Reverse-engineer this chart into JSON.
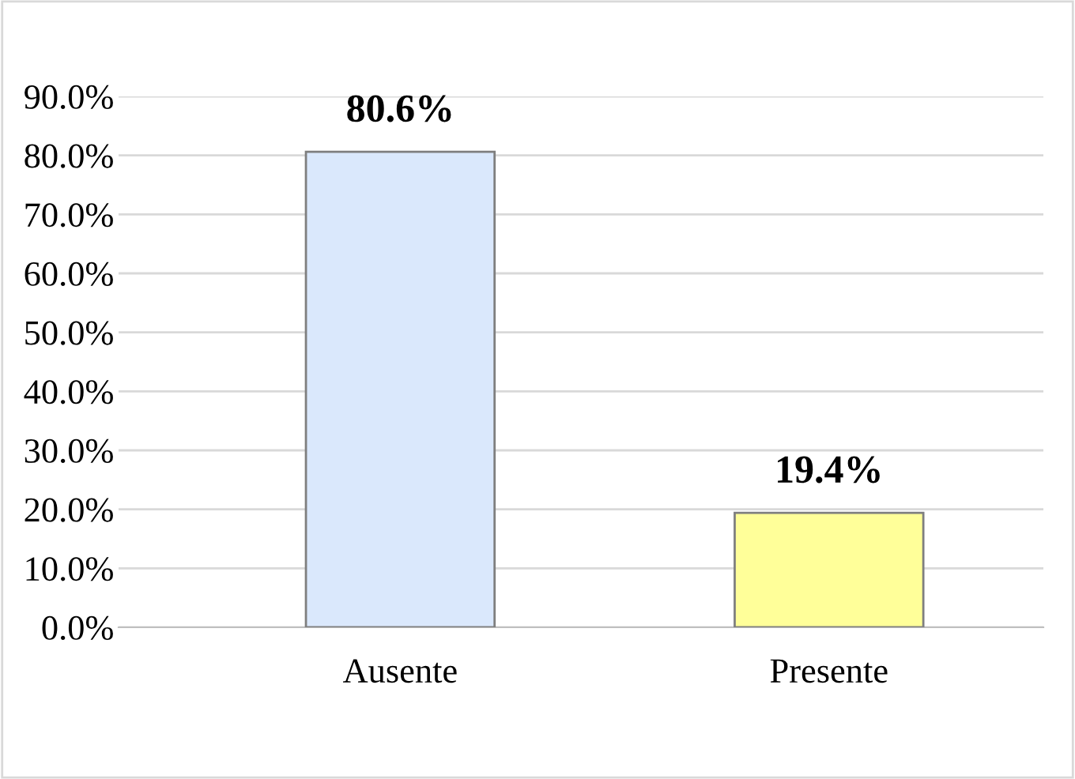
{
  "chart_data": {
    "type": "bar",
    "categories": [
      "Ausente",
      "Presente"
    ],
    "values": [
      80.6,
      19.4
    ],
    "colors": [
      "#dae8fc",
      "#ffff99"
    ],
    "value_labels": [
      "80.6%",
      "19.4%"
    ],
    "ylim": [
      0,
      90
    ],
    "yticks": [
      {
        "value": 0,
        "label": "0.0%"
      },
      {
        "value": 10,
        "label": "10.0%"
      },
      {
        "value": 20,
        "label": "20.0%"
      },
      {
        "value": 30,
        "label": "30.0%"
      },
      {
        "value": 40,
        "label": "40.0%"
      },
      {
        "value": 50,
        "label": "50.0%"
      },
      {
        "value": 60,
        "label": "60.0%"
      },
      {
        "value": 70,
        "label": "70.0%"
      },
      {
        "value": 80,
        "label": "80.0%"
      },
      {
        "value": 90,
        "label": "90.0%"
      }
    ],
    "grid": "y",
    "legend": false
  }
}
